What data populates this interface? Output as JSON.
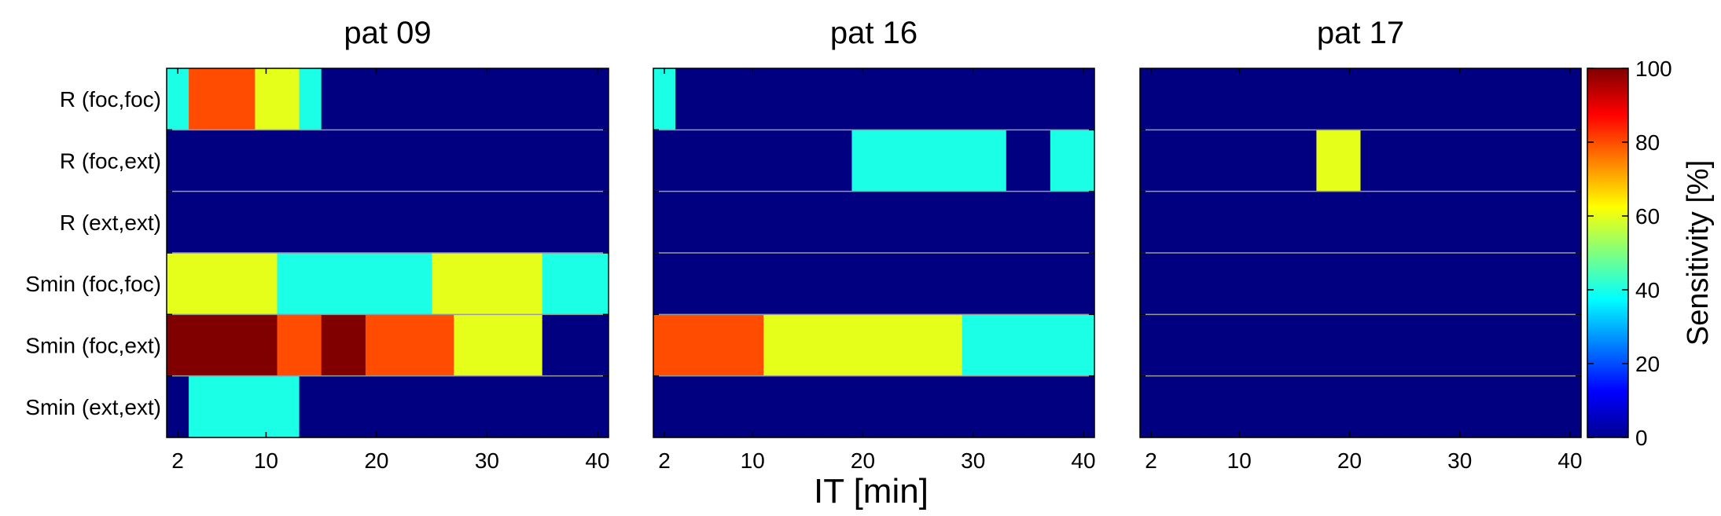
{
  "chart_data": {
    "type": "heatmap",
    "xlabel": "IT [min]",
    "rows": [
      "R (foc,foc)",
      "R (foc,ext)",
      "R (ext,ext)",
      "Smin (foc,foc)",
      "Smin (foc,ext)",
      "Smin (ext,ext)"
    ],
    "x": [
      2,
      4,
      6,
      8,
      10,
      12,
      14,
      16,
      18,
      20,
      22,
      24,
      26,
      28,
      30,
      32,
      34,
      36,
      38,
      40
    ],
    "xticks": [
      2,
      10,
      20,
      30,
      40
    ],
    "xlim": [
      1,
      41
    ],
    "colorbar": {
      "label": "Sensitivity [%]",
      "range": [
        0,
        100
      ],
      "ticks": [
        0,
        20,
        40,
        60,
        80,
        100
      ],
      "colormap": "jet"
    },
    "panels": [
      {
        "title": "pat 09",
        "values": [
          [
            40,
            80,
            80,
            80,
            60,
            60,
            40,
            0,
            0,
            0,
            0,
            0,
            0,
            0,
            0,
            0,
            0,
            0,
            0,
            0
          ],
          [
            0,
            0,
            0,
            0,
            0,
            0,
            0,
            0,
            0,
            0,
            0,
            0,
            0,
            0,
            0,
            0,
            0,
            0,
            0,
            0
          ],
          [
            0,
            0,
            0,
            0,
            0,
            0,
            0,
            0,
            0,
            0,
            0,
            0,
            0,
            0,
            0,
            0,
            0,
            0,
            0,
            0
          ],
          [
            60,
            60,
            60,
            60,
            60,
            40,
            40,
            40,
            40,
            40,
            40,
            40,
            60,
            60,
            60,
            60,
            60,
            40,
            40,
            40
          ],
          [
            100,
            100,
            100,
            100,
            100,
            80,
            80,
            100,
            100,
            80,
            80,
            80,
            80,
            60,
            60,
            60,
            60,
            0,
            0,
            0
          ],
          [
            0,
            40,
            40,
            40,
            40,
            40,
            0,
            0,
            0,
            0,
            0,
            0,
            0,
            0,
            0,
            0,
            0,
            0,
            0,
            0
          ]
        ]
      },
      {
        "title": "pat 16",
        "values": [
          [
            40,
            0,
            0,
            0,
            0,
            0,
            0,
            0,
            0,
            0,
            0,
            0,
            0,
            0,
            0,
            0,
            0,
            0,
            0,
            0
          ],
          [
            0,
            0,
            0,
            0,
            0,
            0,
            0,
            0,
            0,
            40,
            40,
            40,
            40,
            40,
            40,
            40,
            0,
            0,
            40,
            40
          ],
          [
            0,
            0,
            0,
            0,
            0,
            0,
            0,
            0,
            0,
            0,
            0,
            0,
            0,
            0,
            0,
            0,
            0,
            0,
            0,
            0
          ],
          [
            0,
            0,
            0,
            0,
            0,
            0,
            0,
            0,
            0,
            0,
            0,
            0,
            0,
            0,
            0,
            0,
            0,
            0,
            0,
            0
          ],
          [
            80,
            80,
            80,
            80,
            80,
            60,
            60,
            60,
            60,
            60,
            60,
            60,
            60,
            60,
            40,
            40,
            40,
            40,
            40,
            40
          ],
          [
            0,
            0,
            0,
            0,
            0,
            0,
            0,
            0,
            0,
            0,
            0,
            0,
            0,
            0,
            0,
            0,
            0,
            0,
            0,
            0
          ]
        ]
      },
      {
        "title": "pat 17",
        "values": [
          [
            0,
            0,
            0,
            0,
            0,
            0,
            0,
            0,
            0,
            0,
            0,
            0,
            0,
            0,
            0,
            0,
            0,
            0,
            0,
            0
          ],
          [
            0,
            0,
            0,
            0,
            0,
            0,
            0,
            0,
            60,
            60,
            0,
            0,
            0,
            0,
            0,
            0,
            0,
            0,
            0,
            0
          ],
          [
            0,
            0,
            0,
            0,
            0,
            0,
            0,
            0,
            0,
            0,
            0,
            0,
            0,
            0,
            0,
            0,
            0,
            0,
            0,
            0
          ],
          [
            0,
            0,
            0,
            0,
            0,
            0,
            0,
            0,
            0,
            0,
            0,
            0,
            0,
            0,
            0,
            0,
            0,
            0,
            0,
            0
          ],
          [
            0,
            0,
            0,
            0,
            0,
            0,
            0,
            0,
            0,
            0,
            0,
            0,
            0,
            0,
            0,
            0,
            0,
            0,
            0,
            0
          ],
          [
            0,
            0,
            0,
            0,
            0,
            0,
            0,
            0,
            0,
            0,
            0,
            0,
            0,
            0,
            0,
            0,
            0,
            0,
            0,
            0
          ]
        ]
      }
    ]
  }
}
